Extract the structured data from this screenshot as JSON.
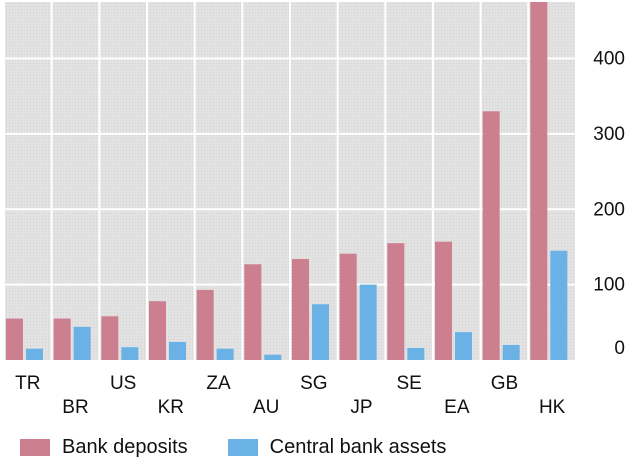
{
  "chart_data": {
    "type": "bar",
    "categories": [
      "TR",
      "BR",
      "US",
      "KR",
      "ZA",
      "AU",
      "SG",
      "JP",
      "SE",
      "EA",
      "GB",
      "HK"
    ],
    "series": [
      {
        "name": "Bank deposits",
        "color": "#cc7f8e",
        "values": [
          55,
          55,
          58,
          78,
          93,
          127,
          134,
          141,
          155,
          157,
          330,
          475
        ]
      },
      {
        "name": "Central bank assets",
        "color": "#6ab2e6",
        "values": [
          15,
          44,
          17,
          24,
          15,
          7,
          74,
          100,
          16,
          37,
          20,
          145
        ]
      }
    ],
    "y_ticks": [
      "0",
      "100",
      "200",
      "300",
      "400"
    ],
    "ylim": [
      0,
      475
    ],
    "y_axis_position": "right",
    "grid": true,
    "legend_position": "bottom-left"
  }
}
